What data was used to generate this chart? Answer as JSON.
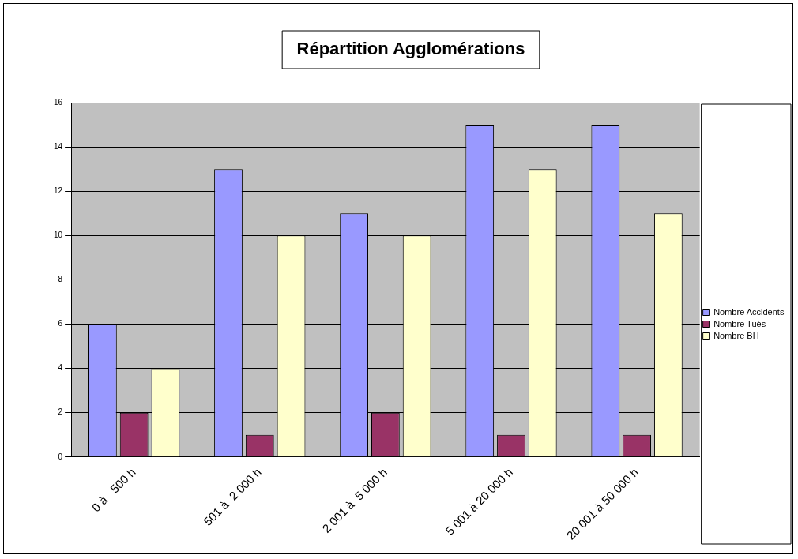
{
  "chart_data": {
    "type": "bar",
    "title": "Répartition Agglomérations",
    "categories": [
      "0 à   500 h",
      "501 à  2 000 h",
      "2 001 à  5 000 h",
      "5 001 à 20 000 h",
      "20 001 à 50 000 h"
    ],
    "series": [
      {
        "name": "Nombre Accidents",
        "color": "#9999ff",
        "values": [
          6,
          13,
          11,
          15,
          15
        ]
      },
      {
        "name": "Nombre Tués",
        "color": "#993366",
        "values": [
          2,
          1,
          2,
          1,
          1
        ]
      },
      {
        "name": "Nombre BH",
        "color": "#ffffcc",
        "values": [
          4,
          10,
          10,
          13,
          11
        ]
      }
    ],
    "ylim": [
      0,
      16
    ],
    "yticks": [
      0,
      2,
      4,
      6,
      8,
      10,
      12,
      14,
      16
    ],
    "grid": "y",
    "legend": "right"
  }
}
